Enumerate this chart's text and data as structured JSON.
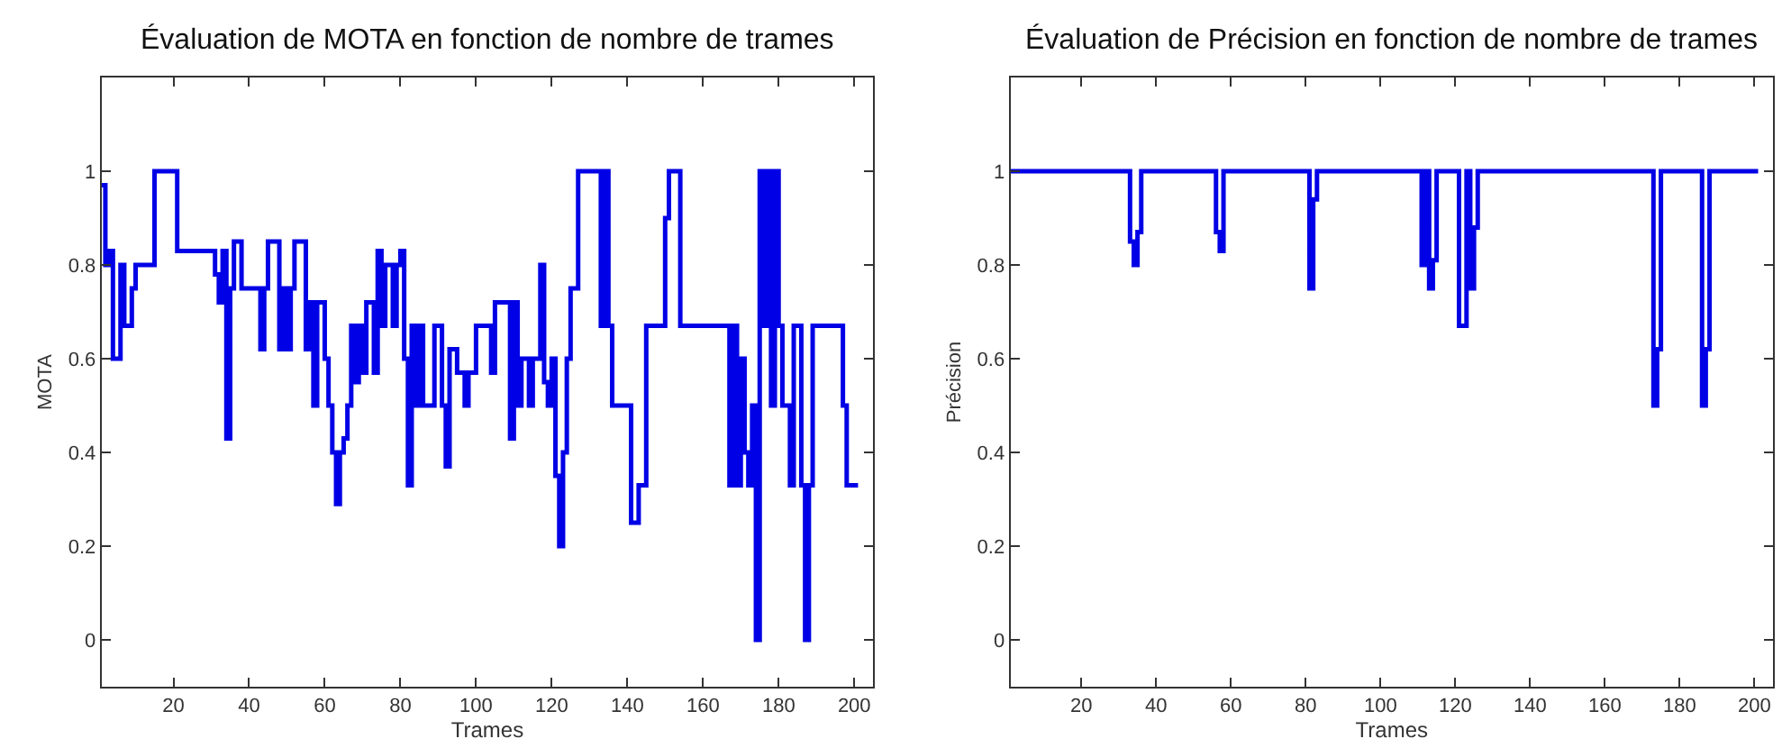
{
  "chart_data": [
    {
      "type": "step",
      "title": "Évaluation de MOTA en fonction de nombre de trames",
      "xlabel": "Trames",
      "ylabel": "MOTA",
      "xlim": [
        1,
        205
      ],
      "ylim": [
        -0.1,
        1.2
      ],
      "xticks": [
        20,
        40,
        60,
        80,
        100,
        120,
        140,
        160,
        180,
        200
      ],
      "yticks": [
        0,
        0.2,
        0.4,
        0.6,
        0.8,
        1
      ],
      "line_style": "solid",
      "series": [
        {
          "color": "#0000e6",
          "x": [
            1,
            2,
            3,
            4,
            5,
            6,
            7,
            9,
            10,
            15,
            21,
            31,
            32,
            33,
            34,
            35,
            36,
            38,
            43,
            44,
            45,
            48,
            49,
            50,
            51,
            52,
            55,
            56,
            57,
            58,
            60,
            61,
            62,
            63,
            64,
            65,
            66,
            67,
            68,
            69,
            70,
            71,
            73,
            74,
            75,
            76,
            78,
            79,
            80,
            81,
            82,
            83,
            84,
            85,
            86,
            89,
            91,
            92,
            93,
            95,
            97,
            98,
            100,
            104,
            105,
            109,
            110,
            111,
            112,
            114,
            115,
            117,
            118,
            119,
            120,
            121,
            122,
            123,
            124,
            125,
            127,
            133,
            134,
            135,
            136,
            141,
            143,
            145,
            150,
            151,
            154,
            167,
            168,
            169,
            170,
            171,
            172,
            173,
            174,
            175,
            176,
            177,
            178,
            179,
            180,
            181,
            183,
            184,
            186,
            187,
            188,
            189,
            197,
            198,
            201
          ],
          "values": [
            0.97,
            0.8,
            0.83,
            0.6,
            0.6,
            0.8,
            0.67,
            0.75,
            0.8,
            1.0,
            0.83,
            0.78,
            0.72,
            0.83,
            0.43,
            0.75,
            0.85,
            0.75,
            0.62,
            0.75,
            0.85,
            0.62,
            0.75,
            0.62,
            0.75,
            0.85,
            0.62,
            0.72,
            0.5,
            0.72,
            0.6,
            0.5,
            0.4,
            0.29,
            0.4,
            0.43,
            0.5,
            0.67,
            0.55,
            0.67,
            0.57,
            0.72,
            0.57,
            0.83,
            0.67,
            0.8,
            0.67,
            0.8,
            0.83,
            0.6,
            0.33,
            0.67,
            0.5,
            0.67,
            0.5,
            0.67,
            0.5,
            0.37,
            0.62,
            0.57,
            0.5,
            0.57,
            0.67,
            0.57,
            0.72,
            0.43,
            0.72,
            0.5,
            0.6,
            0.5,
            0.6,
            0.8,
            0.55,
            0.5,
            0.6,
            0.35,
            0.2,
            0.4,
            0.6,
            0.75,
            1.0,
            0.67,
            1.0,
            0.67,
            0.5,
            0.25,
            0.33,
            0.67,
            0.9,
            1.0,
            0.67,
            0.33,
            0.67,
            0.33,
            0.6,
            0.4,
            0.33,
            0.5,
            0.0,
            1.0,
            0.67,
            1.0,
            0.5,
            1.0,
            0.67,
            0.5,
            0.33,
            0.67,
            0.33,
            0.0,
            0.33,
            0.67,
            0.5,
            0.33,
            0.33
          ]
        }
      ]
    },
    {
      "type": "step",
      "title": "Évaluation de Précision en fonction de nombre de trames",
      "xlabel": "Trames",
      "ylabel": "Précision",
      "xlim": [
        1,
        205
      ],
      "ylim": [
        -0.1,
        1.2
      ],
      "xticks": [
        20,
        40,
        60,
        80,
        100,
        120,
        140,
        160,
        180,
        200
      ],
      "yticks": [
        0,
        0.2,
        0.4,
        0.6,
        0.8,
        1
      ],
      "line_style": "solid",
      "series": [
        {
          "color": "#0000e6",
          "x": [
            1,
            33,
            34,
            35,
            36,
            56,
            57,
            58,
            81,
            82,
            83,
            111,
            112,
            113,
            114,
            115,
            121,
            123,
            124,
            125,
            126,
            173,
            174,
            175,
            186,
            187,
            188,
            201
          ],
          "values": [
            1,
            0.85,
            0.8,
            0.87,
            1,
            0.87,
            0.83,
            1,
            0.75,
            0.94,
            1,
            0.8,
            1,
            0.75,
            0.81,
            1,
            0.67,
            1,
            0.75,
            0.88,
            1,
            0.5,
            0.62,
            1,
            0.5,
            0.62,
            1,
            1
          ]
        }
      ]
    }
  ]
}
